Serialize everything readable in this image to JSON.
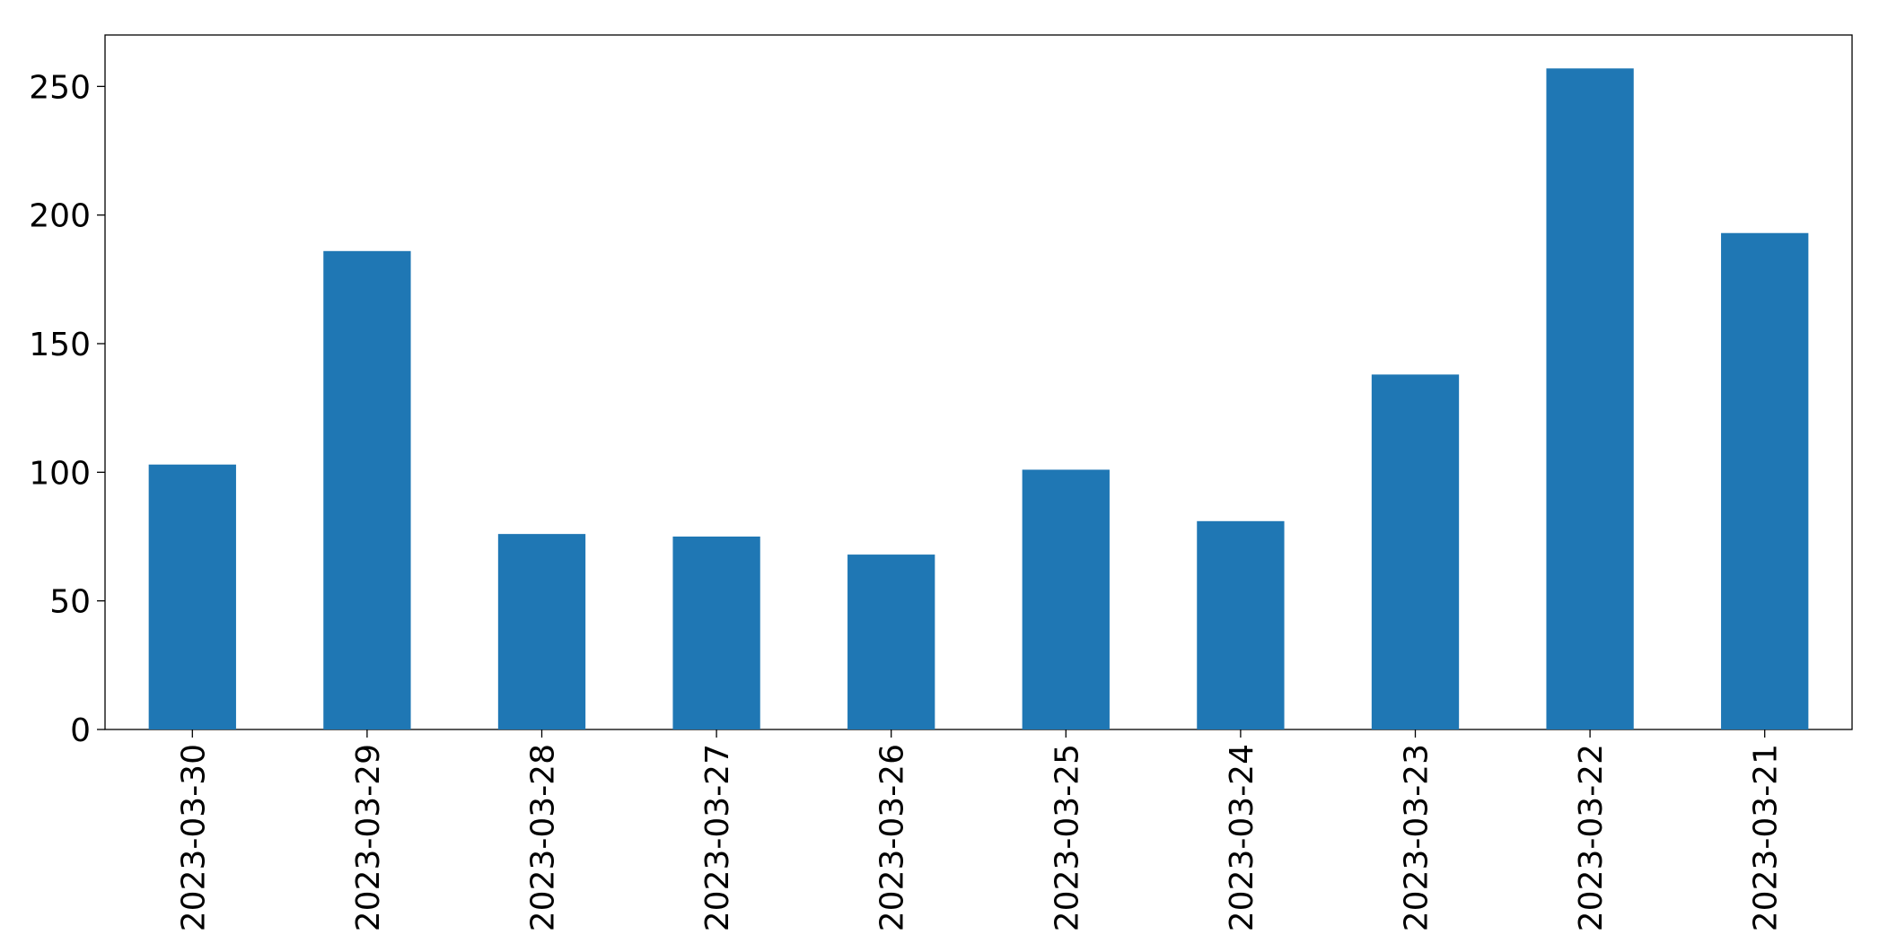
{
  "chart_data": {
    "type": "bar",
    "categories": [
      "2023-03-30",
      "2023-03-29",
      "2023-03-28",
      "2023-03-27",
      "2023-03-26",
      "2023-03-25",
      "2023-03-24",
      "2023-03-23",
      "2023-03-22",
      "2023-03-21"
    ],
    "values": [
      103,
      186,
      76,
      75,
      68,
      101,
      81,
      138,
      257,
      193
    ],
    "color": "#1f77b4",
    "ylim": [
      0,
      270
    ],
    "yticks": [
      0,
      50,
      100,
      150,
      200,
      250
    ],
    "grid": false
  }
}
